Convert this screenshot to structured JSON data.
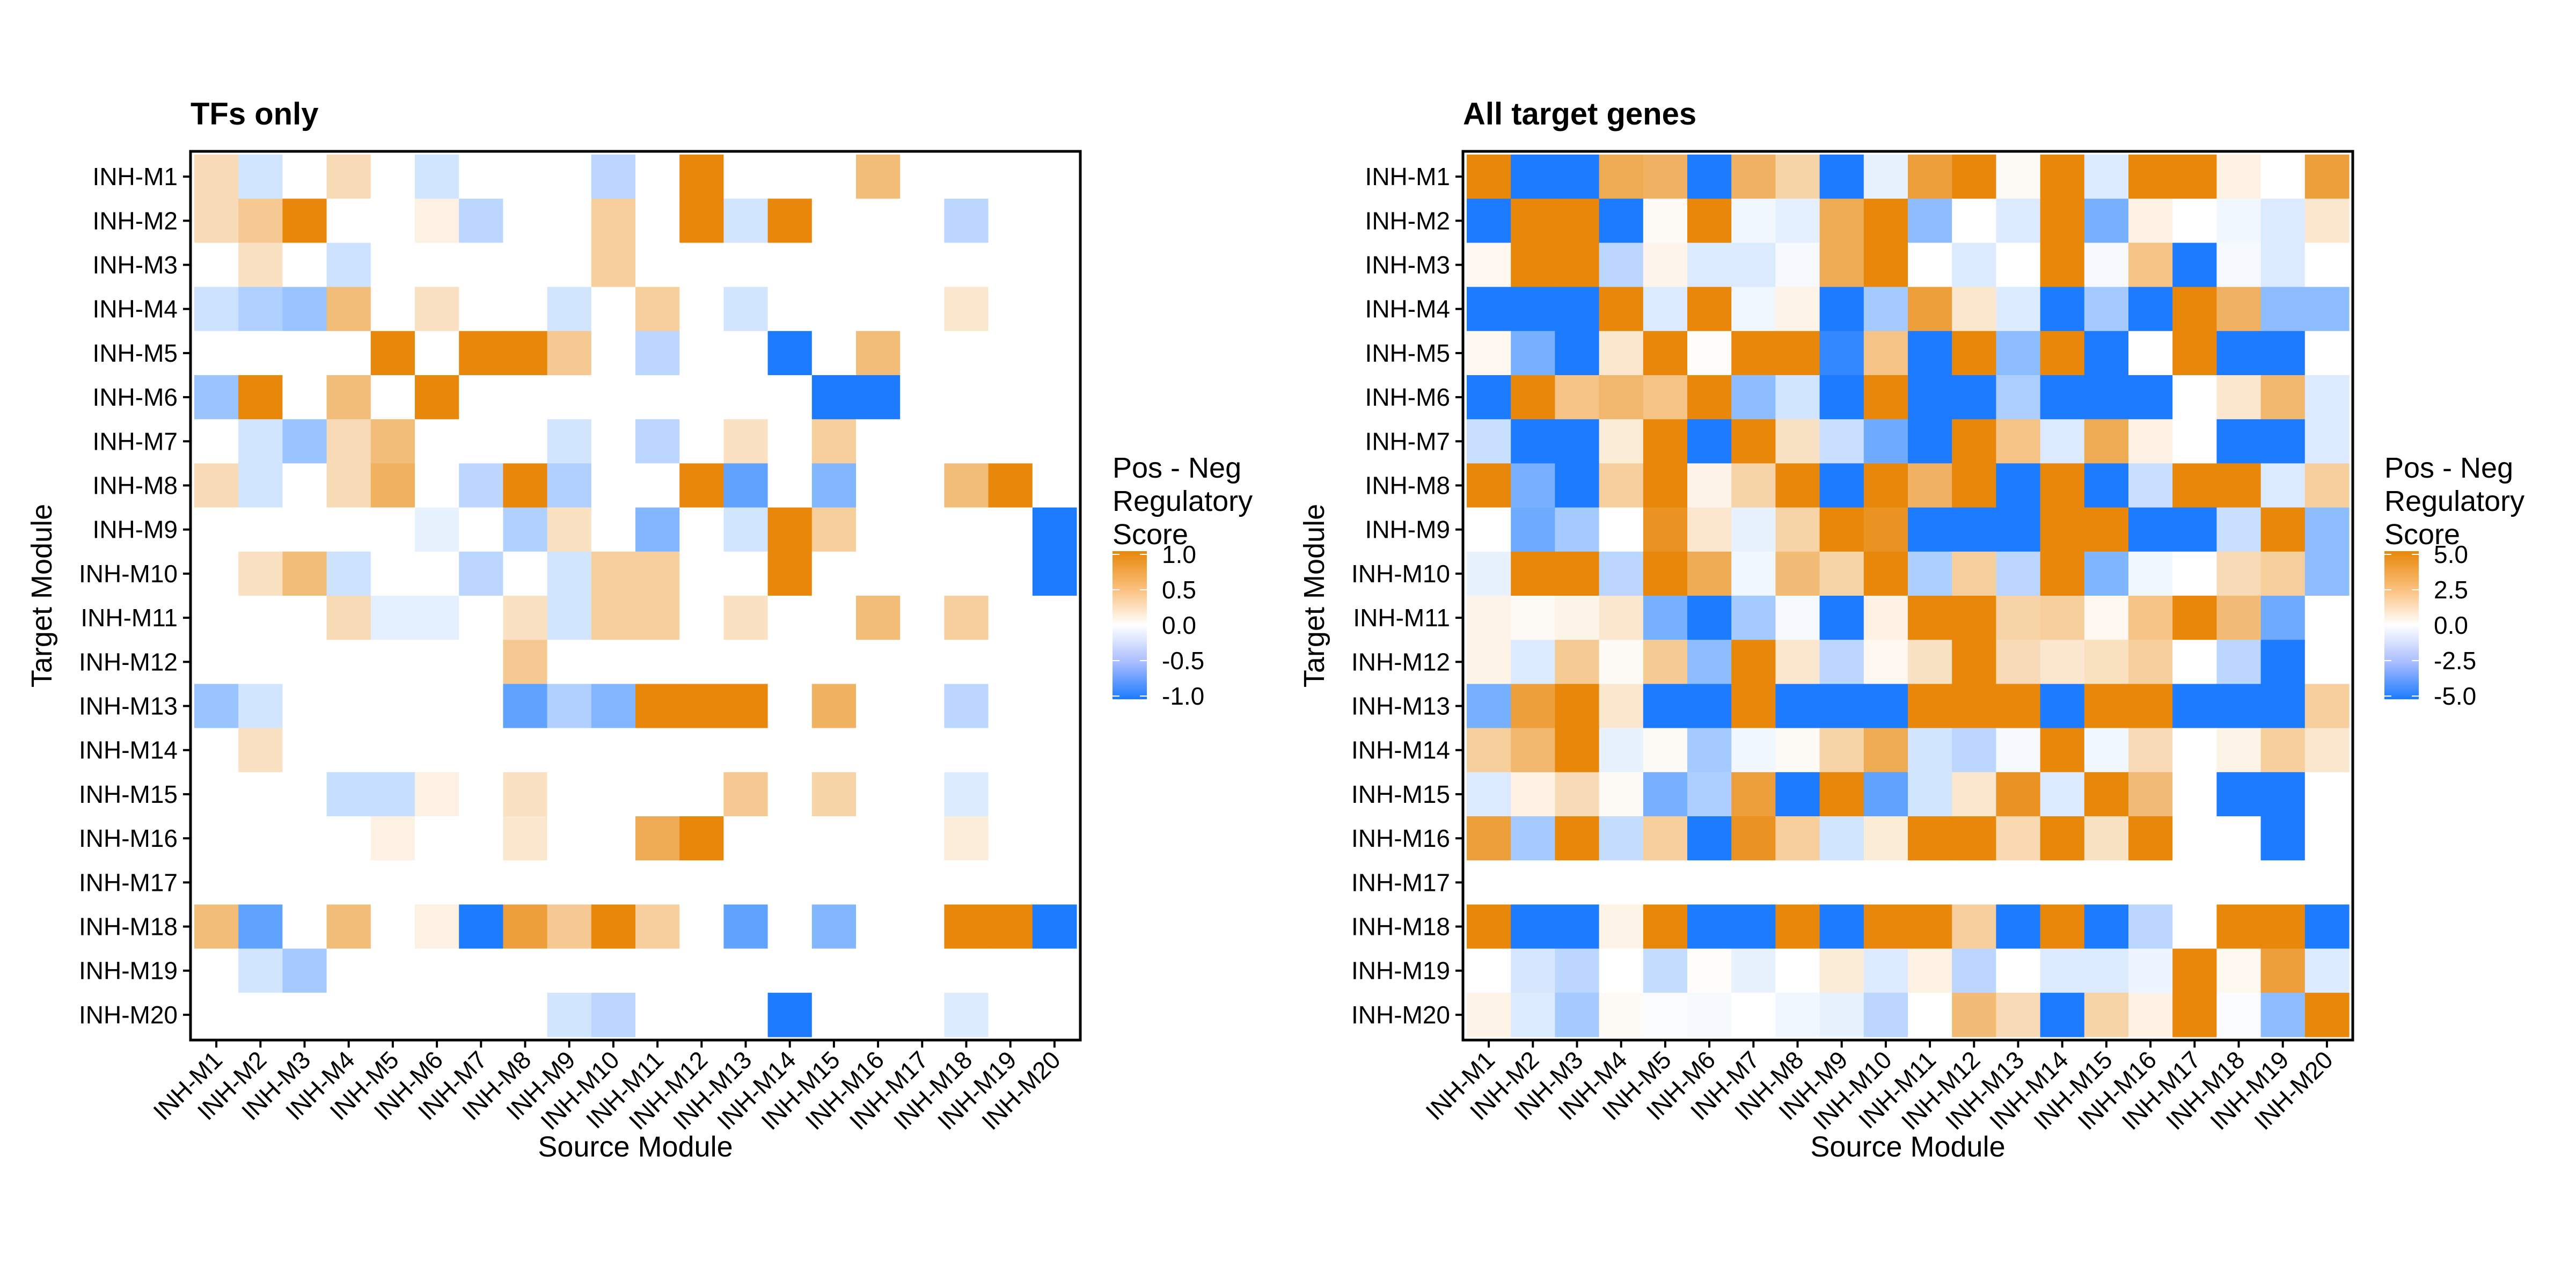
{
  "chart_data": [
    {
      "type": "heatmap",
      "title": "TFs only",
      "xlabel": "Source Module",
      "ylabel": "Target Module",
      "x_categories": [
        "INH-M1",
        "INH-M2",
        "INH-M3",
        "INH-M4",
        "INH-M5",
        "INH-M6",
        "INH-M7",
        "INH-M8",
        "INH-M9",
        "INH-M10",
        "INH-M11",
        "INH-M12",
        "INH-M13",
        "INH-M14",
        "INH-M15",
        "INH-M16",
        "INH-M17",
        "INH-M18",
        "INH-M19",
        "INH-M20"
      ],
      "y_categories": [
        "INH-M1",
        "INH-M2",
        "INH-M3",
        "INH-M4",
        "INH-M5",
        "INH-M6",
        "INH-M7",
        "INH-M8",
        "INH-M9",
        "INH-M10",
        "INH-M11",
        "INH-M12",
        "INH-M13",
        "INH-M14",
        "INH-M15",
        "INH-M16",
        "INH-M17",
        "INH-M18",
        "INH-M19",
        "INH-M20"
      ],
      "values": [
        [
          0.3,
          -0.2,
          0,
          0.3,
          0,
          -0.2,
          0,
          0,
          0,
          -0.3,
          0,
          1,
          0,
          0,
          0,
          0.55,
          0,
          0,
          0,
          0
        ],
        [
          0.3,
          0.45,
          1,
          0,
          0,
          0.12,
          -0.3,
          0,
          0,
          0.4,
          0,
          1,
          -0.2,
          1,
          0,
          0,
          0,
          -0.3,
          0,
          0
        ],
        [
          0,
          0.25,
          0,
          -0.22,
          0,
          0,
          0,
          0,
          0,
          0.4,
          0,
          0,
          0,
          0,
          0,
          0,
          0,
          0,
          0,
          0
        ],
        [
          -0.22,
          -0.35,
          -0.45,
          0.55,
          0,
          0.25,
          0,
          0,
          -0.2,
          0,
          0.4,
          0,
          -0.2,
          0,
          0,
          0,
          0,
          0.2,
          0,
          0
        ],
        [
          0,
          0,
          0,
          0,
          1,
          0,
          1,
          1,
          0.45,
          0,
          -0.3,
          0,
          0,
          -1,
          0,
          0.55,
          0,
          0,
          0,
          0
        ],
        [
          -0.45,
          1,
          0,
          0.55,
          0,
          1,
          0,
          0,
          0,
          0,
          0,
          0,
          0,
          0,
          -1,
          -1,
          0,
          0,
          0,
          0
        ],
        [
          0,
          -0.2,
          -0.45,
          0.3,
          0.55,
          0,
          0,
          0,
          -0.2,
          0,
          -0.3,
          0,
          0.25,
          0,
          0.4,
          0,
          0,
          0,
          0,
          0
        ],
        [
          0.3,
          -0.2,
          0,
          0.3,
          0.65,
          0,
          -0.3,
          1,
          -0.35,
          0,
          0,
          1,
          -0.7,
          0,
          -0.55,
          0,
          0,
          0.55,
          1,
          0
        ],
        [
          0,
          0,
          0,
          0,
          0,
          -0.1,
          0,
          -0.35,
          0.25,
          0,
          -0.55,
          0,
          -0.2,
          1,
          0.4,
          0,
          0,
          0,
          0,
          -1
        ],
        [
          0,
          0.25,
          0.55,
          -0.22,
          0,
          0,
          -0.3,
          0,
          -0.2,
          0.4,
          0.4,
          0,
          0,
          1,
          0,
          0,
          0,
          0,
          0,
          -1
        ],
        [
          0,
          0,
          0,
          0.3,
          -0.12,
          -0.12,
          0,
          0.25,
          -0.2,
          0.4,
          0.4,
          0,
          0.25,
          0,
          0,
          0.55,
          0,
          0.4,
          0,
          0
        ],
        [
          0,
          0,
          0,
          0,
          0,
          0,
          0,
          0.45,
          0,
          0,
          0,
          0,
          0,
          0,
          0,
          0,
          0,
          0,
          0,
          0
        ],
        [
          -0.45,
          -0.2,
          0,
          0,
          0,
          0,
          0,
          -0.7,
          -0.35,
          -0.55,
          1,
          1,
          1,
          0,
          0.65,
          0,
          0,
          -0.3,
          0,
          0
        ],
        [
          0,
          0.25,
          0,
          0,
          0,
          0,
          0,
          0,
          0,
          0,
          0,
          0,
          0,
          0,
          0,
          0,
          0,
          0,
          0,
          0
        ],
        [
          0,
          0,
          0,
          -0.25,
          -0.25,
          0.12,
          0,
          0.25,
          0,
          0,
          0,
          0,
          0.45,
          0,
          0.35,
          0,
          0,
          -0.15,
          0,
          0
        ],
        [
          0,
          0,
          0,
          0,
          0.12,
          0,
          0,
          0.2,
          0,
          0,
          0.7,
          1,
          0,
          0,
          0,
          0,
          0,
          0.15,
          0,
          0
        ],
        [
          0,
          0,
          0,
          0,
          0,
          0,
          0,
          0,
          0,
          0,
          0,
          0,
          0,
          0,
          0,
          0,
          0,
          0,
          0,
          0
        ],
        [
          0.55,
          -0.7,
          0,
          0.55,
          0,
          0.12,
          -1,
          0.8,
          0.45,
          1,
          0.4,
          0,
          -0.7,
          0,
          -0.55,
          0,
          0,
          1,
          1,
          -1
        ],
        [
          0,
          -0.2,
          -0.4,
          0,
          0,
          0,
          0,
          0,
          0,
          0,
          0,
          0,
          0,
          0,
          0,
          0,
          0,
          0,
          0,
          0
        ],
        [
          0,
          0,
          0,
          0,
          0,
          0,
          0,
          0,
          -0.2,
          -0.3,
          0,
          0,
          0,
          -1,
          0,
          0,
          0,
          -0.15,
          0,
          0
        ]
      ],
      "color_scale": {
        "low": "#1C7BFF",
        "mid": "#FFFFFF",
        "high": "#E8870A",
        "limits": [
          -1,
          1
        ]
      },
      "legend": {
        "title_lines": [
          "Pos - Neg",
          "Regulatory",
          "Score"
        ],
        "ticks": [
          1.0,
          0.5,
          0.0,
          -0.5,
          -1.0
        ],
        "tick_labels": [
          "1.0",
          "0.5",
          "0.0",
          "-0.5",
          "-1.0"
        ],
        "placement": "right"
      }
    },
    {
      "type": "heatmap",
      "title": "All target genes",
      "xlabel": "Source Module",
      "ylabel": "Target Module",
      "x_categories": [
        "INH-M1",
        "INH-M2",
        "INH-M3",
        "INH-M4",
        "INH-M5",
        "INH-M6",
        "INH-M7",
        "INH-M8",
        "INH-M9",
        "INH-M10",
        "INH-M11",
        "INH-M12",
        "INH-M13",
        "INH-M14",
        "INH-M15",
        "INH-M16",
        "INH-M17",
        "INH-M18",
        "INH-M19",
        "INH-M20"
      ],
      "y_categories": [
        "INH-M1",
        "INH-M2",
        "INH-M3",
        "INH-M4",
        "INH-M5",
        "INH-M6",
        "INH-M7",
        "INH-M8",
        "INH-M9",
        "INH-M10",
        "INH-M11",
        "INH-M12",
        "INH-M13",
        "INH-M14",
        "INH-M15",
        "INH-M16",
        "INH-M17",
        "INH-M18",
        "INH-M19",
        "INH-M20"
      ],
      "values": [
        [
          5,
          -5,
          -5,
          3.5,
          3.2,
          -5,
          3.2,
          1.8,
          -5,
          -0.5,
          4,
          5,
          0.2,
          5,
          -0.8,
          5,
          5,
          0.6,
          0,
          4
        ],
        [
          -5,
          5,
          5,
          -5,
          0.2,
          5,
          -0.3,
          -0.6,
          3.5,
          5,
          -2.5,
          0,
          -0.8,
          5,
          -3,
          0.6,
          0,
          -0.3,
          -0.8,
          1
        ],
        [
          0.3,
          5,
          5,
          -1.5,
          0.4,
          -0.8,
          -0.8,
          -0.2,
          3.5,
          5,
          0,
          -0.8,
          0,
          5,
          -0.2,
          2.5,
          -5,
          -0.2,
          -0.8,
          0
        ],
        [
          -5,
          -5,
          -5,
          5,
          -0.8,
          5,
          -0.3,
          0.5,
          -5,
          -2,
          4,
          1,
          -0.8,
          -5,
          -2,
          -5,
          5,
          3.2,
          -2.5,
          -2.5
        ],
        [
          0.3,
          -3,
          -5,
          1,
          5,
          0.1,
          5,
          5,
          -4.5,
          2.5,
          -5,
          5,
          -2.5,
          5,
          -5,
          0,
          5,
          -5,
          -5,
          0
        ],
        [
          -5,
          5,
          2.5,
          3,
          2.5,
          5,
          -2.5,
          -1,
          -5,
          5,
          -5,
          -5,
          -1.8,
          -5,
          -5,
          -5,
          0,
          1,
          3,
          -0.8
        ],
        [
          -1.2,
          -5,
          -5,
          0.8,
          5,
          -5,
          5,
          1.2,
          -1.2,
          -3.2,
          -5,
          5,
          2.5,
          -0.8,
          3.5,
          0.6,
          0,
          -5,
          -5,
          -0.8
        ],
        [
          5,
          -3,
          -5,
          2,
          5,
          0.5,
          1.8,
          5,
          -5,
          5,
          3.2,
          5,
          -5,
          5,
          -5,
          -1.2,
          5,
          5,
          -0.8,
          2
        ],
        [
          0,
          -3.2,
          -2,
          0,
          4.5,
          1,
          -0.5,
          1.8,
          5,
          4.5,
          -5,
          -5,
          -5,
          5,
          5,
          -5,
          -5,
          -1.2,
          5,
          -2.5
        ],
        [
          -0.5,
          5,
          5,
          -1.5,
          5,
          3.5,
          -0.3,
          2.8,
          1.8,
          5,
          -1.8,
          2,
          -1.5,
          5,
          -2.8,
          -0.3,
          0,
          1.5,
          2,
          -2.5
        ],
        [
          0.5,
          0.2,
          0.5,
          1,
          -3,
          -5,
          -2,
          -0.2,
          -5,
          0.6,
          5,
          5,
          1.8,
          2,
          0.3,
          2.5,
          5,
          2.8,
          -3.2,
          0
        ],
        [
          0.5,
          -0.8,
          2.2,
          0.2,
          2.2,
          -2.5,
          5,
          1,
          -1.5,
          0.3,
          1.2,
          5,
          1.5,
          1,
          1.3,
          2,
          0,
          -1.5,
          -5,
          0
        ],
        [
          -3,
          4,
          5,
          1,
          -5,
          -5,
          5,
          -5,
          -5,
          -5,
          5,
          5,
          5,
          -5,
          5,
          5,
          -5,
          -5,
          -5,
          2
        ],
        [
          2,
          3,
          5,
          -0.5,
          0.2,
          -2,
          -0.3,
          0.2,
          1.8,
          3.5,
          -1,
          -1.5,
          -0.2,
          5,
          -0.3,
          1.5,
          0,
          0.5,
          2,
          1
        ],
        [
          -0.8,
          0.6,
          1.5,
          0.2,
          -3,
          -1.8,
          4,
          -5,
          5,
          -3.5,
          -1,
          1,
          4.5,
          -0.8,
          5,
          2.8,
          0,
          -5,
          -5,
          0
        ],
        [
          4,
          -2,
          5,
          -1.3,
          2,
          -5,
          4.5,
          2,
          -1,
          0.8,
          5,
          5,
          1.6,
          5,
          1.2,
          5,
          0,
          0,
          -5,
          0
        ],
        [
          0,
          0,
          0,
          0,
          0,
          0,
          0,
          0,
          0,
          0,
          0,
          0,
          0,
          0,
          0,
          0,
          0,
          0,
          0,
          0
        ],
        [
          5,
          -5,
          -5,
          0.5,
          5,
          -5,
          -5,
          5,
          -5,
          5,
          5,
          2,
          -5,
          5,
          -5,
          -1.5,
          0,
          5,
          5,
          -5
        ],
        [
          0,
          -0.9,
          -1.5,
          0,
          -1.3,
          0.1,
          -0.5,
          0,
          0.8,
          -0.8,
          0.6,
          -1.5,
          0,
          -0.8,
          -0.8,
          -0.4,
          5,
          0.3,
          4,
          -0.8
        ],
        [
          0.5,
          -0.8,
          -2,
          0.2,
          -0.1,
          -0.2,
          0,
          -0.3,
          -0.5,
          -1.5,
          0,
          2.8,
          1.5,
          -5,
          1.8,
          0.6,
          5,
          -0.1,
          -2.5,
          5
        ]
      ],
      "color_scale": {
        "low": "#1C7BFF",
        "mid": "#FFFFFF",
        "high": "#E8870A",
        "limits": [
          -5,
          5
        ]
      },
      "legend": {
        "title_lines": [
          "Pos - Neg",
          "Regulatory",
          "Score"
        ],
        "ticks": [
          5.0,
          2.5,
          0.0,
          -2.5,
          -5.0
        ],
        "tick_labels": [
          "5.0",
          "2.5",
          "0.0",
          "-2.5",
          "-5.0"
        ],
        "placement": "right"
      }
    }
  ]
}
